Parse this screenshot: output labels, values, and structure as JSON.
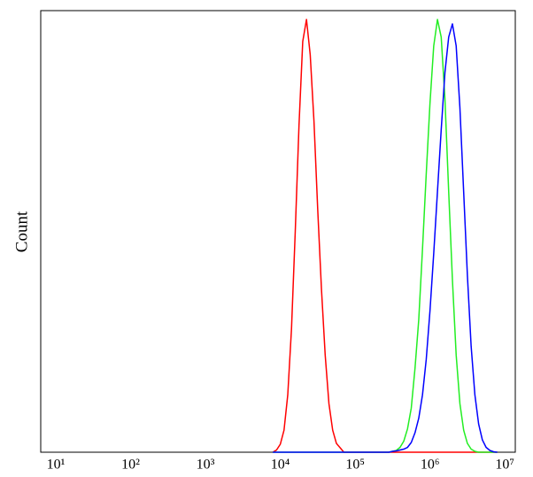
{
  "chart_data": {
    "type": "line",
    "ylabel": "Count",
    "xscale": "log",
    "xlim": [
      6.3,
      13800000
    ],
    "ylim": [
      0,
      100
    ],
    "xticks": [
      {
        "value": 10,
        "label": "10¹"
      },
      {
        "value": 100,
        "label": "10²"
      },
      {
        "value": 1000,
        "label": "10³"
      },
      {
        "value": 10000,
        "label": "10⁴"
      },
      {
        "value": 100000,
        "label": "10⁵"
      },
      {
        "value": 1000000,
        "label": "10⁶"
      },
      {
        "value": 10000000,
        "label": "10⁷"
      }
    ],
    "grid": false,
    "x": [
      7943,
      8913,
      10000,
      11220,
      12589,
      14125,
      15849,
      17783,
      19953,
      22387,
      25119,
      28184,
      31623,
      35481,
      39811,
      44668,
      50119,
      56234,
      63096,
      70795,
      79433,
      89125,
      100000,
      112202,
      125893,
      141254,
      158489,
      177828,
      199526,
      223872,
      251189,
      281838,
      316228,
      354813,
      398107,
      446684,
      501187,
      562341,
      630957,
      707946,
      794328,
      891251,
      1000000,
      1122018,
      1258925,
      1412538,
      1584893,
      1778279,
      1995262,
      2238721,
      2511886,
      2818383,
      3162278,
      3548134,
      3981072,
      4466836,
      5011872,
      5623413,
      6309573,
      7079458,
      7943282
    ],
    "series": [
      {
        "color": "#ff0000",
        "values": [
          0,
          0.5,
          1.8,
          5,
          13,
          28,
          50,
          74,
          93,
          98,
          90,
          75,
          55,
          37,
          22,
          11,
          5,
          2,
          1,
          0,
          0,
          0,
          0,
          0,
          0,
          0,
          0,
          0,
          0,
          0,
          0,
          0,
          0,
          0,
          0,
          0,
          0,
          0,
          0,
          0,
          0,
          0,
          0,
          0,
          0,
          0,
          0,
          0,
          0,
          0,
          0,
          0,
          0,
          0,
          0,
          0,
          0,
          0,
          0,
          0,
          0
        ]
      },
      {
        "color": "#22ee22",
        "values": [
          0,
          0,
          0,
          0,
          0,
          0,
          0,
          0,
          0,
          0,
          0,
          0,
          0,
          0,
          0,
          0,
          0,
          0,
          0,
          0,
          0,
          0,
          0,
          0,
          0,
          0,
          0,
          0,
          0,
          0,
          0,
          0,
          0.2,
          0.4,
          1.1,
          2.5,
          5.3,
          10,
          19,
          30,
          46,
          63,
          79,
          92,
          98,
          94,
          80,
          59,
          39,
          22,
          11,
          5,
          2,
          0.7,
          0.2,
          0,
          0,
          0,
          0,
          0,
          0
        ]
      },
      {
        "color": "#0000ff",
        "values": [
          0,
          0,
          0,
          0,
          0,
          0,
          0,
          0,
          0,
          0,
          0,
          0,
          0,
          0,
          0,
          0,
          0,
          0,
          0,
          0,
          0,
          0,
          0,
          0,
          0,
          0,
          0,
          0,
          0,
          0,
          0,
          0,
          0.2,
          0.3,
          0.5,
          0.7,
          1.1,
          2.2,
          4.4,
          7.7,
          13,
          21,
          32,
          45,
          59,
          73,
          86,
          94,
          97,
          92,
          78,
          59,
          40,
          24,
          13,
          6.4,
          2.8,
          1.1,
          0.4,
          0.1,
          0
        ]
      }
    ]
  }
}
